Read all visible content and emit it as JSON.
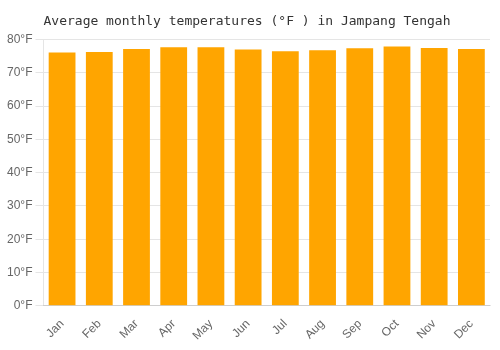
{
  "chart_data": {
    "type": "bar",
    "title": "Average monthly temperatures (°F ) in Jampang Tengah",
    "categories": [
      "Jan",
      "Feb",
      "Mar",
      "Apr",
      "May",
      "Jun",
      "Jul",
      "Aug",
      "Sep",
      "Oct",
      "Nov",
      "Dec"
    ],
    "values": [
      76.1,
      76.3,
      77.2,
      77.7,
      77.7,
      77.0,
      76.5,
      76.8,
      77.4,
      77.9,
      77.5,
      77.2
    ],
    "color": "#FFA500",
    "ylim": [
      0,
      80
    ],
    "yticks": [
      {
        "value": 0,
        "label": "0°F"
      },
      {
        "value": 10,
        "label": "10°F"
      },
      {
        "value": 20,
        "label": "20°F"
      },
      {
        "value": 30,
        "label": "30°F"
      },
      {
        "value": 40,
        "label": "40°F"
      },
      {
        "value": 50,
        "label": "50°F"
      },
      {
        "value": 60,
        "label": "60°F"
      },
      {
        "value": 70,
        "label": "70°F"
      },
      {
        "value": 80,
        "label": "80°F"
      }
    ],
    "grid": true
  }
}
